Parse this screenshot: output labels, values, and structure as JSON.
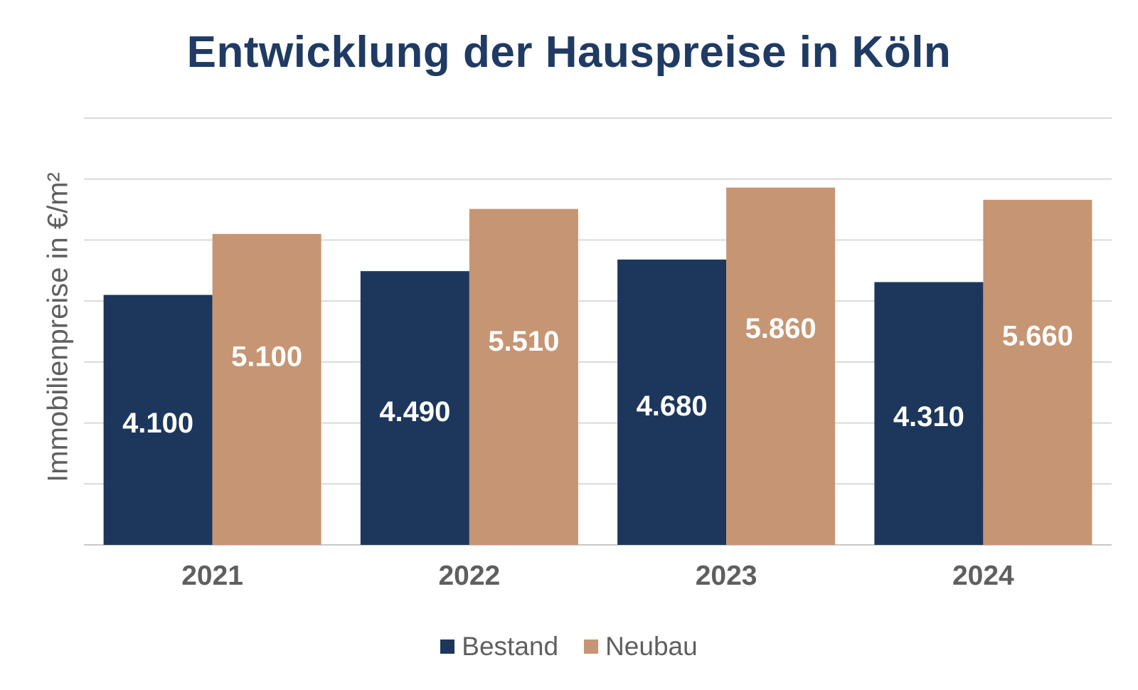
{
  "chart_data": {
    "type": "bar",
    "title": "Entwicklung der Hauspreise in Köln",
    "ylabel": "Immobilienpreise in €/m²",
    "xlabel": "",
    "categories": [
      "2021",
      "2022",
      "2023",
      "2024"
    ],
    "series": [
      {
        "name": "Bestand",
        "color": "#1d375c",
        "values": [
          4100,
          4490,
          4680,
          4310
        ],
        "labels": [
          "4.100",
          "4.490",
          "4.680",
          "4.310"
        ]
      },
      {
        "name": "Neubau",
        "color": "#c69573",
        "values": [
          5100,
          5510,
          5860,
          5660
        ],
        "labels": [
          "5.100",
          "5.510",
          "5.860",
          "5.660"
        ]
      }
    ],
    "ylim": [
      0,
      7000
    ],
    "grid": true,
    "legend_position": "bottom"
  }
}
